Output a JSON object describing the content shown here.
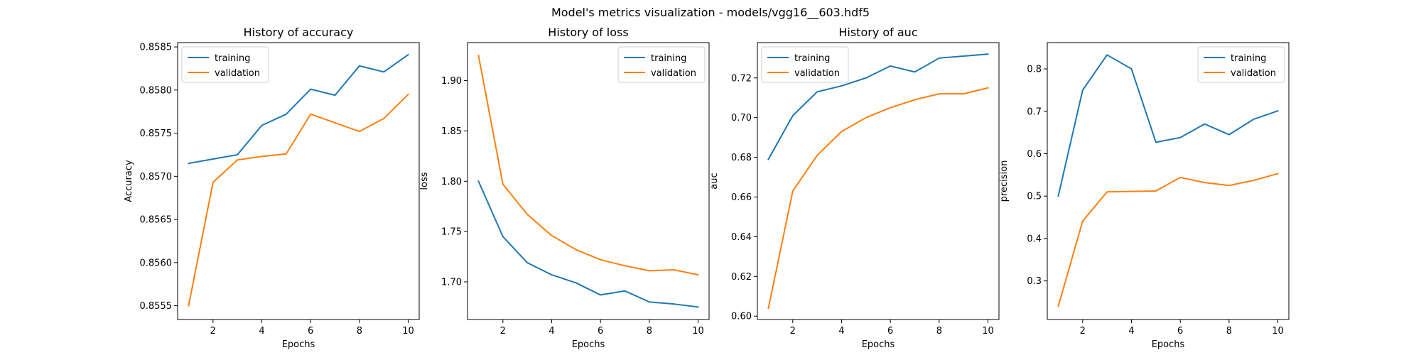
{
  "figure_title": "Model's metrics visualization - models/vgg16__603.hdf5",
  "colors": {
    "training": "#1f77b4",
    "validation": "#ff7f0e"
  },
  "chart_data": [
    {
      "type": "line",
      "title": "History of accuracy",
      "xlabel": "Epochs",
      "ylabel": "Accuracy",
      "x": [
        1,
        2,
        3,
        4,
        5,
        6,
        7,
        8,
        9,
        10
      ],
      "xticks": [
        2,
        4,
        6,
        8,
        10
      ],
      "xlim": [
        0.55,
        10.45
      ],
      "ylim": [
        0.85534,
        0.85855
      ],
      "yticks": [
        0.8555,
        0.856,
        0.8565,
        0.857,
        0.8575,
        0.858,
        0.8585
      ],
      "ytick_labels": [
        "0.8555",
        "0.8560",
        "0.8565",
        "0.8570",
        "0.8575",
        "0.8580",
        "0.8585"
      ],
      "legend": "upper-left",
      "series": [
        {
          "name": "training",
          "values": [
            0.85715,
            0.8572,
            0.85725,
            0.85759,
            0.85772,
            0.85801,
            0.85794,
            0.85828,
            0.85821,
            0.85841
          ]
        },
        {
          "name": "validation",
          "values": [
            0.8555,
            0.85693,
            0.85719,
            0.85723,
            0.85726,
            0.85772,
            0.85762,
            0.85752,
            0.85767,
            0.85795
          ]
        }
      ]
    },
    {
      "type": "line",
      "title": "History of loss",
      "xlabel": "Epochs",
      "ylabel": "loss",
      "x": [
        1,
        2,
        3,
        4,
        5,
        6,
        7,
        8,
        9,
        10
      ],
      "xticks": [
        2,
        4,
        6,
        8,
        10
      ],
      "xlim": [
        0.55,
        10.45
      ],
      "ylim": [
        1.6626,
        1.9378
      ],
      "yticks": [
        1.7,
        1.75,
        1.8,
        1.85,
        1.9
      ],
      "ytick_labels": [
        "1.70",
        "1.75",
        "1.80",
        "1.85",
        "1.90"
      ],
      "legend": "upper-right",
      "series": [
        {
          "name": "training",
          "values": [
            1.8,
            1.745,
            1.719,
            1.707,
            1.699,
            1.687,
            1.691,
            1.68,
            1.678,
            1.675
          ]
        },
        {
          "name": "validation",
          "values": [
            1.925,
            1.797,
            1.767,
            1.746,
            1.732,
            1.722,
            1.716,
            1.711,
            1.712,
            1.707
          ]
        }
      ]
    },
    {
      "type": "line",
      "title": "History of auc",
      "xlabel": "Epochs",
      "ylabel": "auc",
      "x": [
        1,
        2,
        3,
        4,
        5,
        6,
        7,
        8,
        9,
        10
      ],
      "xticks": [
        2,
        4,
        6,
        8,
        10
      ],
      "xlim": [
        0.55,
        10.45
      ],
      "ylim": [
        0.5983,
        0.7378
      ],
      "yticks": [
        0.6,
        0.62,
        0.64,
        0.66,
        0.68,
        0.7,
        0.72
      ],
      "ytick_labels": [
        "0.60",
        "0.62",
        "0.64",
        "0.66",
        "0.68",
        "0.70",
        "0.72"
      ],
      "legend": "upper-left",
      "series": [
        {
          "name": "training",
          "values": [
            0.679,
            0.701,
            0.713,
            0.716,
            0.72,
            0.726,
            0.723,
            0.73,
            0.731,
            0.732
          ]
        },
        {
          "name": "validation",
          "values": [
            0.604,
            0.663,
            0.681,
            0.693,
            0.7,
            0.705,
            0.709,
            0.712,
            0.712,
            0.715
          ]
        }
      ]
    },
    {
      "type": "line",
      "title": "",
      "xlabel": "Epochs",
      "ylabel": "precision",
      "x": [
        1,
        2,
        3,
        4,
        5,
        6,
        7,
        8,
        9,
        10
      ],
      "xticks": [
        2,
        4,
        6,
        8,
        10
      ],
      "xlim": [
        0.55,
        10.45
      ],
      "ylim": [
        0.209,
        0.862
      ],
      "yticks": [
        0.3,
        0.4,
        0.5,
        0.6,
        0.7,
        0.8
      ],
      "ytick_labels": [
        "0.3",
        "0.4",
        "0.5",
        "0.6",
        "0.7",
        "0.8"
      ],
      "legend": "upper-right",
      "series": [
        {
          "name": "training",
          "values": [
            0.5,
            0.75,
            0.833,
            0.8,
            0.627,
            0.638,
            0.67,
            0.645,
            0.681,
            0.701
          ]
        },
        {
          "name": "validation",
          "values": [
            0.24,
            0.441,
            0.51,
            0.511,
            0.512,
            0.544,
            0.532,
            0.525,
            0.537,
            0.553
          ]
        }
      ]
    }
  ]
}
